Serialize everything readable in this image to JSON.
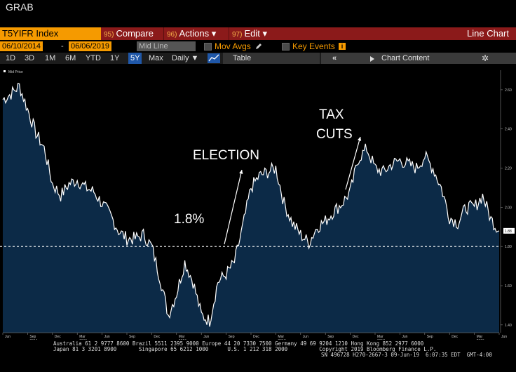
{
  "header": {
    "grab": "GRAB"
  },
  "cmdbar": {
    "ticker": "T5YIFR Index",
    "compare_num": "95)",
    "compare_label": "Compare",
    "actions_num": "96)",
    "actions_label": "Actions ▾",
    "edit_num": "97)",
    "edit_label": "Edit ▾",
    "right_label": "Line Chart"
  },
  "row2": {
    "start_date": "06/10/2014",
    "dash": "-",
    "end_date": "06/06/2019",
    "mid_line": "Mid Line",
    "mov_avgs": "Mov Avgs",
    "key_events": "Key Events"
  },
  "row3": {
    "ranges": [
      "1D",
      "3D",
      "1M",
      "6M",
      "YTD",
      "1Y",
      "5Y",
      "Max"
    ],
    "active_range": "5Y",
    "frequency": "Daily ▼",
    "table": "Table",
    "back_arrows": "«",
    "chart_content": "Chart Content",
    "gear": "✲"
  },
  "chart_data": {
    "type": "area",
    "series_label": "Mid Price",
    "ylim": [
      1.36,
      2.7
    ],
    "yticks": [
      "2.60",
      "2.40",
      "2.20",
      "2.00",
      "1.80",
      "1.60",
      "1.40"
    ],
    "last_value": "1.88",
    "reference_line": 1.8,
    "xtick_months": [
      "Jun",
      "Sep",
      "Dec",
      "Mar",
      "Jun",
      "Sep",
      "Dec",
      "Mar",
      "Jun",
      "Sep",
      "Dec",
      "Mar",
      "Jun",
      "Sep",
      "Dec",
      "Mar",
      "Jun",
      "Sep",
      "Dec",
      "Mar",
      "Jun"
    ],
    "xtick_years": [
      "2014",
      "2015",
      "2016",
      "2017",
      "2018",
      "2019"
    ],
    "x": [
      "2014-06",
      "2014-07",
      "2014-08",
      "2014-09",
      "2014-10",
      "2014-11",
      "2014-12",
      "2015-01",
      "2015-02",
      "2015-03",
      "2015-04",
      "2015-05",
      "2015-06",
      "2015-07",
      "2015-08",
      "2015-09",
      "2015-10",
      "2015-11",
      "2015-12",
      "2016-01",
      "2016-02",
      "2016-03",
      "2016-04",
      "2016-05",
      "2016-06",
      "2016-07",
      "2016-08",
      "2016-09",
      "2016-10",
      "2016-11",
      "2016-12",
      "2017-01",
      "2017-02",
      "2017-03",
      "2017-04",
      "2017-05",
      "2017-06",
      "2017-07",
      "2017-08",
      "2017-09",
      "2017-10",
      "2017-11",
      "2017-12",
      "2018-01",
      "2018-02",
      "2018-03",
      "2018-04",
      "2018-05",
      "2018-06",
      "2018-07",
      "2018-08",
      "2018-09",
      "2018-10",
      "2018-11",
      "2018-12",
      "2019-01",
      "2019-02",
      "2019-03",
      "2019-04",
      "2019-05",
      "2019-06"
    ],
    "values": [
      2.55,
      2.58,
      2.62,
      2.5,
      2.38,
      2.3,
      2.12,
      2.06,
      2.12,
      2.14,
      2.1,
      2.08,
      2.02,
      1.96,
      1.88,
      1.84,
      1.84,
      1.86,
      1.8,
      1.64,
      1.45,
      1.56,
      1.72,
      1.62,
      1.45,
      1.42,
      1.62,
      1.66,
      1.72,
      1.9,
      2.1,
      2.16,
      2.18,
      2.2,
      2.02,
      1.92,
      1.86,
      1.82,
      1.9,
      1.93,
      1.98,
      2.02,
      2.08,
      2.25,
      2.3,
      2.2,
      2.18,
      2.22,
      2.24,
      2.22,
      2.2,
      2.26,
      2.2,
      2.1,
      1.95,
      1.92,
      2.0,
      2.0,
      2.06,
      1.94,
      1.88
    ],
    "annotations": [
      {
        "text": "1.8%"
      },
      {
        "text": "ELECTION"
      },
      {
        "text": "TAX"
      },
      {
        "text": "CUTS"
      }
    ]
  },
  "footer": {
    "line1": "Australia 61 2 9777 8600 Brazil 5511 2395 9000 Europe 44 20 7330 7500 Germany 49 69 9204 1210 Hong Kong 852 2977 6000",
    "line2": "Japan 81 3 3201 8900       Singapore 65 6212 1000      U.S. 1 212 318 2000          Copyright 2019 Bloomberg Finance L.P.",
    "line3": "SN 496728 H270-2667-3 09-Jun-19  6:07:35 EDT  GMT-4:00"
  },
  "colors": {
    "accent": "#f59a00",
    "cmdbar": "#8b1a1a",
    "area_fill": "#0c2a47",
    "line": "#ffffff"
  }
}
